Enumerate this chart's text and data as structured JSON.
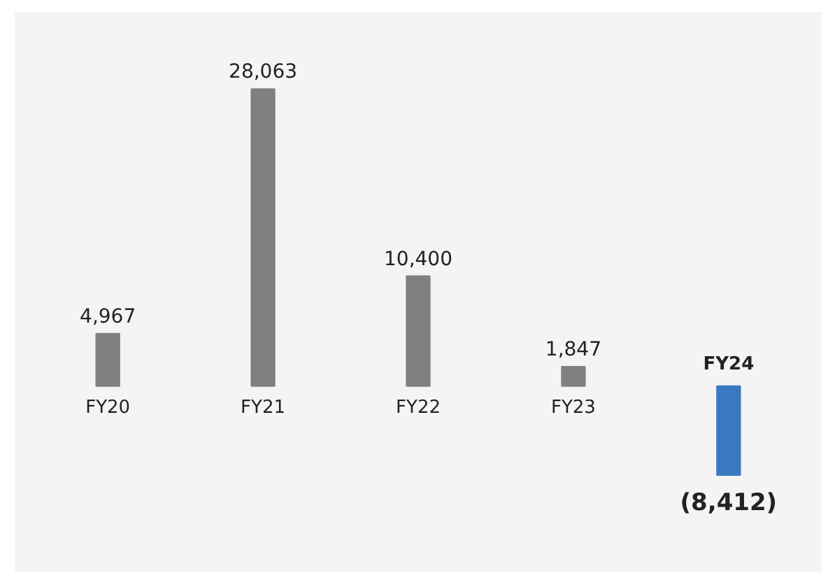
{
  "chart_data": {
    "type": "bar",
    "categories": [
      "FY20",
      "FY21",
      "FY22",
      "FY23",
      "FY24"
    ],
    "values": [
      4967,
      28063,
      10400,
      1847,
      -8412
    ],
    "colors": [
      "#808080",
      "#808080",
      "#808080",
      "#808080",
      "#3a78c0"
    ],
    "value_labels": [
      "4,967",
      "28,063",
      "10,400",
      "1,847",
      "(8,412)"
    ],
    "grid": false
  }
}
